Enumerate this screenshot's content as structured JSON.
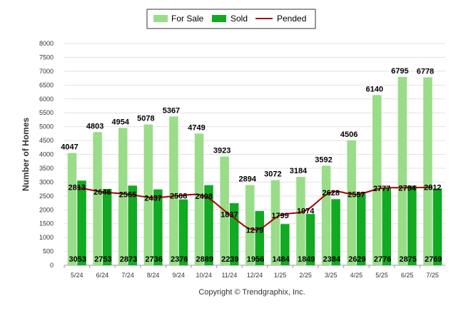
{
  "chart_data": {
    "type": "bar",
    "ylabel": "Number of Homes",
    "ylim": [
      0,
      8000
    ],
    "yticks": [
      0,
      500,
      1000,
      1500,
      2000,
      2500,
      3000,
      3500,
      4000,
      4500,
      5000,
      5500,
      6000,
      6500,
      7000,
      7500,
      8000
    ],
    "categories": [
      "5/24",
      "6/24",
      "7/24",
      "8/24",
      "9/24",
      "10/24",
      "11/24",
      "12/24",
      "1/25",
      "2/25",
      "3/25",
      "4/25",
      "5/25",
      "6/25",
      "7/25"
    ],
    "legend_position": "top-center",
    "series": [
      {
        "name": "For Sale",
        "kind": "bar",
        "color": "#99dd88",
        "values": [
          4047,
          4803,
          4954,
          5078,
          5367,
          4749,
          3923,
          2894,
          3072,
          3184,
          3592,
          4506,
          6140,
          6795,
          6778
        ]
      },
      {
        "name": "Sold",
        "kind": "bar",
        "color": "#11aa22",
        "values": [
          3053,
          2753,
          2873,
          2736,
          2376,
          2889,
          2239,
          1956,
          1484,
          1849,
          2384,
          2629,
          2776,
          2875,
          2769
        ]
      },
      {
        "name": "Pended",
        "kind": "line",
        "color": "#aa0000",
        "values": [
          2813,
          2646,
          2565,
          2437,
          2508,
          2498,
          1837,
          1279,
          1799,
          1974,
          2628,
          2557,
          2777,
          2794,
          2812
        ]
      }
    ],
    "footer": "Copyright © Trendgraphix, Inc."
  }
}
